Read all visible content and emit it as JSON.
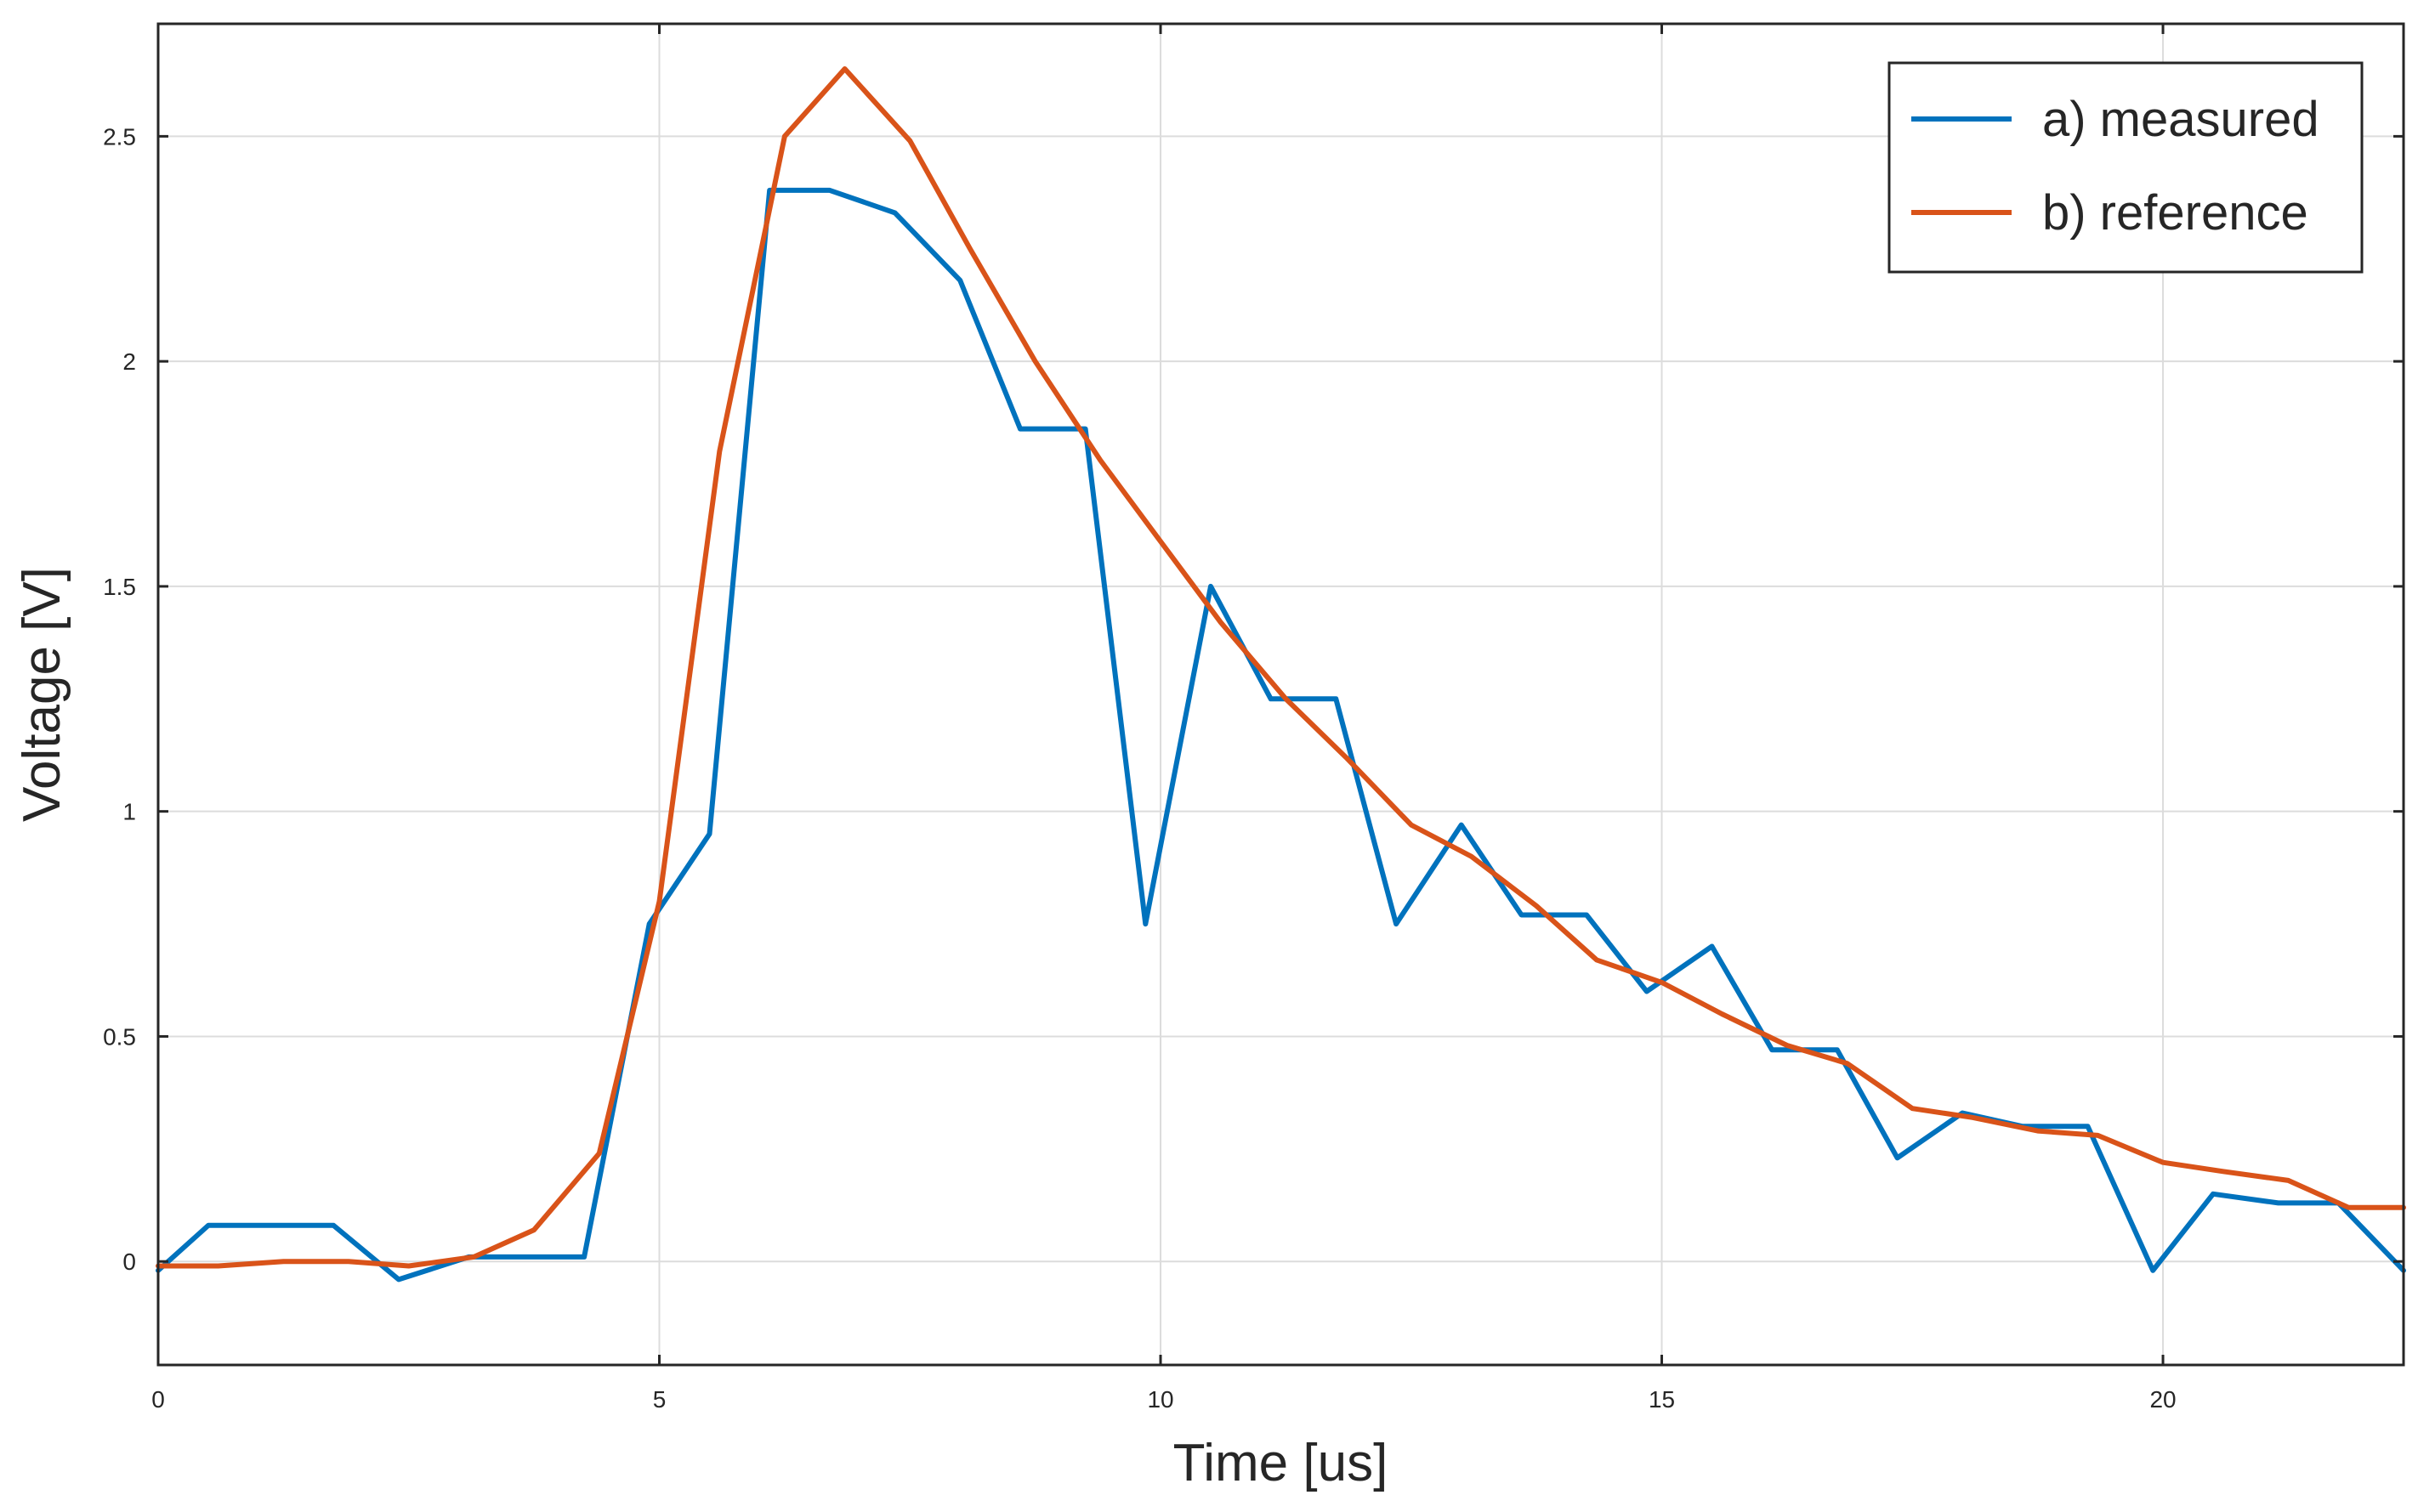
{
  "chart_data": {
    "type": "line",
    "title": "",
    "xlabel": "Time [us]",
    "ylabel": "Voltage [V]",
    "xlim": [
      0,
      22.4
    ],
    "ylim": [
      -0.23,
      2.75
    ],
    "xticks": [
      0,
      5,
      10,
      15,
      20
    ],
    "yticks": [
      0,
      0.5,
      1,
      1.5,
      2,
      2.5
    ],
    "xtick_labels": [
      "0",
      "5",
      "10",
      "15",
      "20"
    ],
    "ytick_labels": [
      "0",
      "0.5",
      "1",
      "1.5",
      "2",
      "2.5"
    ],
    "grid": true,
    "legend_position": "top-right",
    "series": [
      {
        "name": "a) measured",
        "color": "#0072BD",
        "x": [
          0,
          0.5,
          1.75,
          2.4,
          3.1,
          4.25,
          4.9,
          5.5,
          6.1,
          6.7,
          7.35,
          8.0,
          8.6,
          9.25,
          9.85,
          10.5,
          11.1,
          11.75,
          12.35,
          13.0,
          13.6,
          14.25,
          14.85,
          15.5,
          16.1,
          16.75,
          17.35,
          18.0,
          18.6,
          19.25,
          19.9,
          20.5,
          21.15,
          21.75,
          22.4
        ],
        "y": [
          -0.02,
          0.08,
          0.08,
          -0.04,
          0.01,
          0.01,
          0.75,
          0.95,
          2.38,
          2.38,
          2.33,
          2.18,
          1.85,
          1.85,
          0.75,
          1.5,
          1.25,
          1.25,
          0.75,
          0.97,
          0.77,
          0.77,
          0.6,
          0.7,
          0.47,
          0.47,
          0.23,
          0.33,
          0.3,
          0.3,
          -0.02,
          0.15,
          0.13,
          0.13,
          -0.02
        ]
      },
      {
        "name": "b) reference",
        "color": "#D95319",
        "x": [
          0,
          0.6,
          1.25,
          1.9,
          2.5,
          3.15,
          3.75,
          4.4,
          5.0,
          5.6,
          6.25,
          6.85,
          7.5,
          8.1,
          8.75,
          9.4,
          10.0,
          10.6,
          11.25,
          11.85,
          12.5,
          13.1,
          13.75,
          14.35,
          15.0,
          15.6,
          16.25,
          16.85,
          17.5,
          18.1,
          18.75,
          19.35,
          20.0,
          20.6,
          21.25,
          21.85,
          22.4
        ],
        "y": [
          -0.01,
          -0.01,
          0.0,
          0.0,
          -0.01,
          0.01,
          0.07,
          0.24,
          0.8,
          1.8,
          2.5,
          2.65,
          2.49,
          2.25,
          2.0,
          1.78,
          1.6,
          1.42,
          1.25,
          1.12,
          0.97,
          0.9,
          0.79,
          0.67,
          0.62,
          0.55,
          0.48,
          0.44,
          0.34,
          0.32,
          0.29,
          0.28,
          0.22,
          0.2,
          0.18,
          0.12,
          0.12
        ]
      }
    ]
  }
}
